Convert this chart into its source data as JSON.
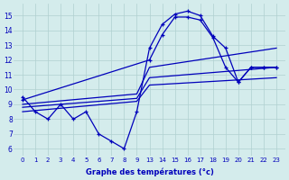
{
  "background_color": "#d4ecec",
  "line_color": "#0000bb",
  "grid_color": "#b0d0d0",
  "xlabel": "Graphe des températures (°c)",
  "ylim": [
    5.5,
    15.8
  ],
  "yticks": [
    6,
    7,
    8,
    9,
    10,
    11,
    12,
    13,
    14,
    15
  ],
  "series_jagged": {
    "x": [
      0,
      1,
      2,
      3,
      4,
      5,
      6,
      7,
      8,
      9,
      13,
      14,
      15,
      16,
      17,
      18,
      19,
      20,
      21,
      22,
      23
    ],
    "y": [
      9.5,
      8.5,
      8.0,
      9.0,
      8.0,
      8.5,
      7.0,
      6.5,
      6.0,
      8.5,
      12.8,
      14.4,
      15.1,
      15.3,
      15.0,
      13.6,
      12.8,
      10.5,
      11.5,
      11.5,
      11.5
    ]
  },
  "series_curve": {
    "x": [
      0,
      13,
      14,
      15,
      16,
      17,
      18,
      19,
      20,
      21,
      22,
      23
    ],
    "y": [
      9.3,
      12.0,
      13.7,
      14.9,
      14.9,
      14.7,
      13.5,
      11.5,
      10.5,
      11.5,
      11.5,
      11.5
    ]
  },
  "series_line1": {
    "x": [
      0,
      9,
      13,
      23
    ],
    "y": [
      9.0,
      9.7,
      11.5,
      12.8
    ]
  },
  "series_line2": {
    "x": [
      0,
      9,
      13,
      23
    ],
    "y": [
      8.8,
      9.4,
      10.8,
      11.5
    ]
  },
  "series_line3": {
    "x": [
      0,
      9,
      13,
      23
    ],
    "y": [
      8.5,
      9.2,
      10.3,
      10.8
    ]
  }
}
